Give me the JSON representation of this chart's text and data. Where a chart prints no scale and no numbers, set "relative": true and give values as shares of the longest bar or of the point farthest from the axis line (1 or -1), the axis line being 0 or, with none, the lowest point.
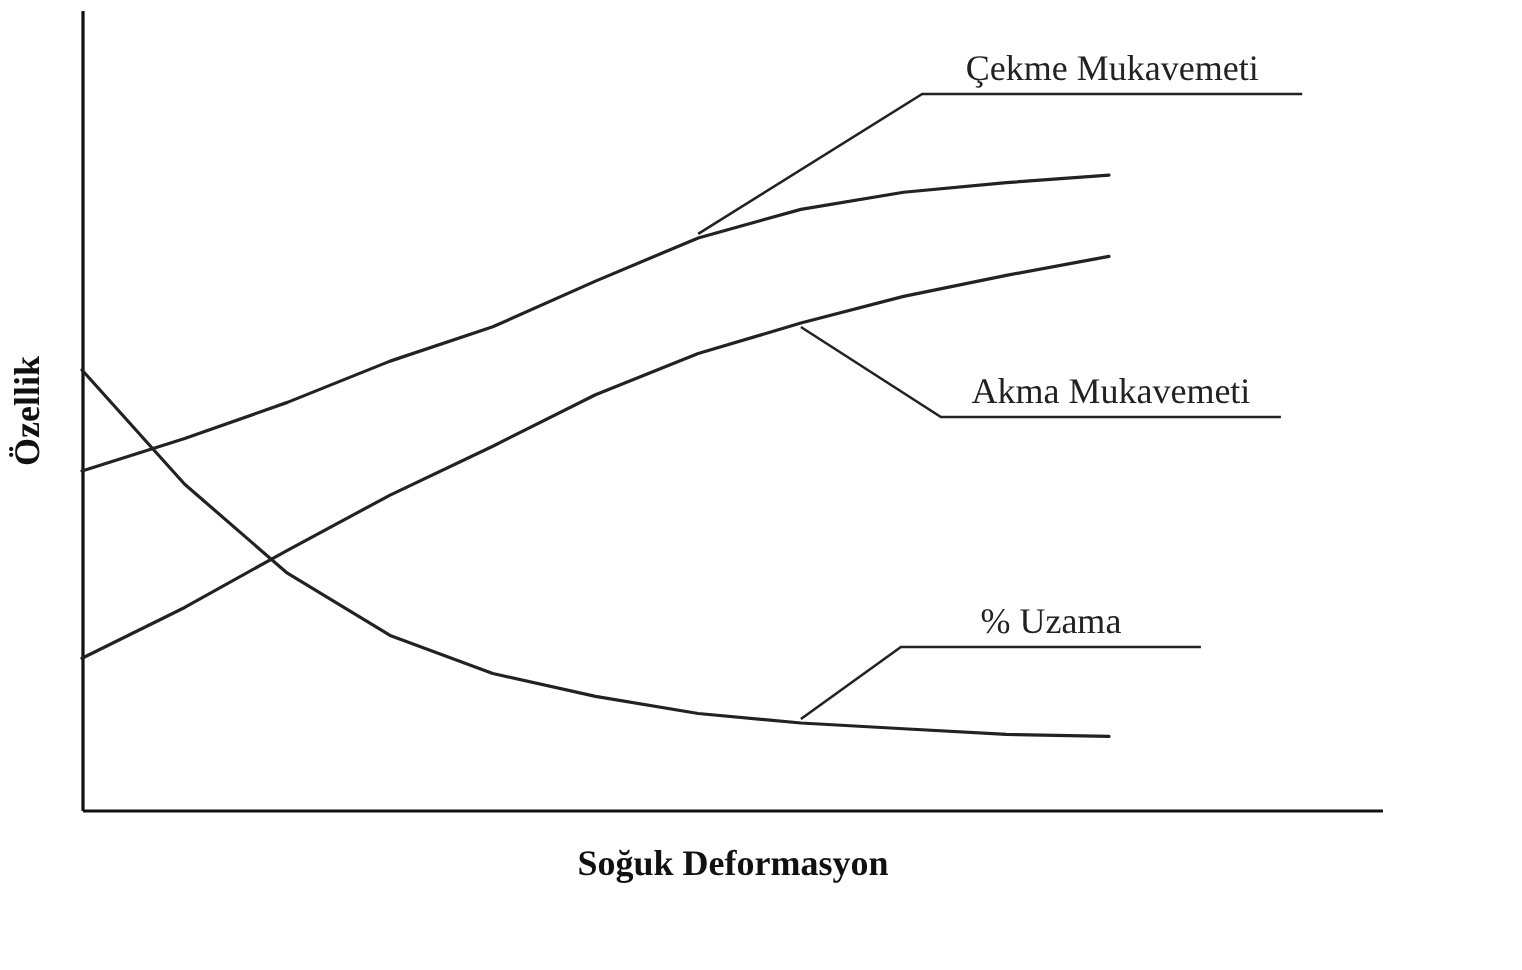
{
  "chart_data": {
    "type": "line",
    "relative": true,
    "xlabel": "Soğuk Deformasyon",
    "ylabel": "Özellik",
    "categories": [
      null,
      null,
      null,
      null,
      null,
      null,
      null,
      null,
      null,
      null,
      null
    ],
    "series": [
      {
        "name": "Çekme  Mukavemeti",
        "color": "#222222",
        "values": [
          0.534,
          0.585,
          0.642,
          0.707,
          0.761,
          0.833,
          0.901,
          0.946,
          0.973,
          0.988,
          1.0
        ]
      },
      {
        "name": "Akma  Mukavemeti",
        "color": "#222222",
        "values": [
          0.239,
          0.319,
          0.409,
          0.496,
          0.573,
          0.654,
          0.719,
          0.767,
          0.809,
          0.842,
          0.872
        ]
      },
      {
        "name": "% Uzama",
        "color": "#222222",
        "values": [
          0.693,
          0.513,
          0.373,
          0.275,
          0.215,
          0.179,
          0.152,
          0.137,
          0.128,
          0.119,
          0.116
        ]
      }
    ],
    "tick_labels": false,
    "grid": false,
    "legend": false,
    "marker": "none",
    "line_style": "solid"
  }
}
